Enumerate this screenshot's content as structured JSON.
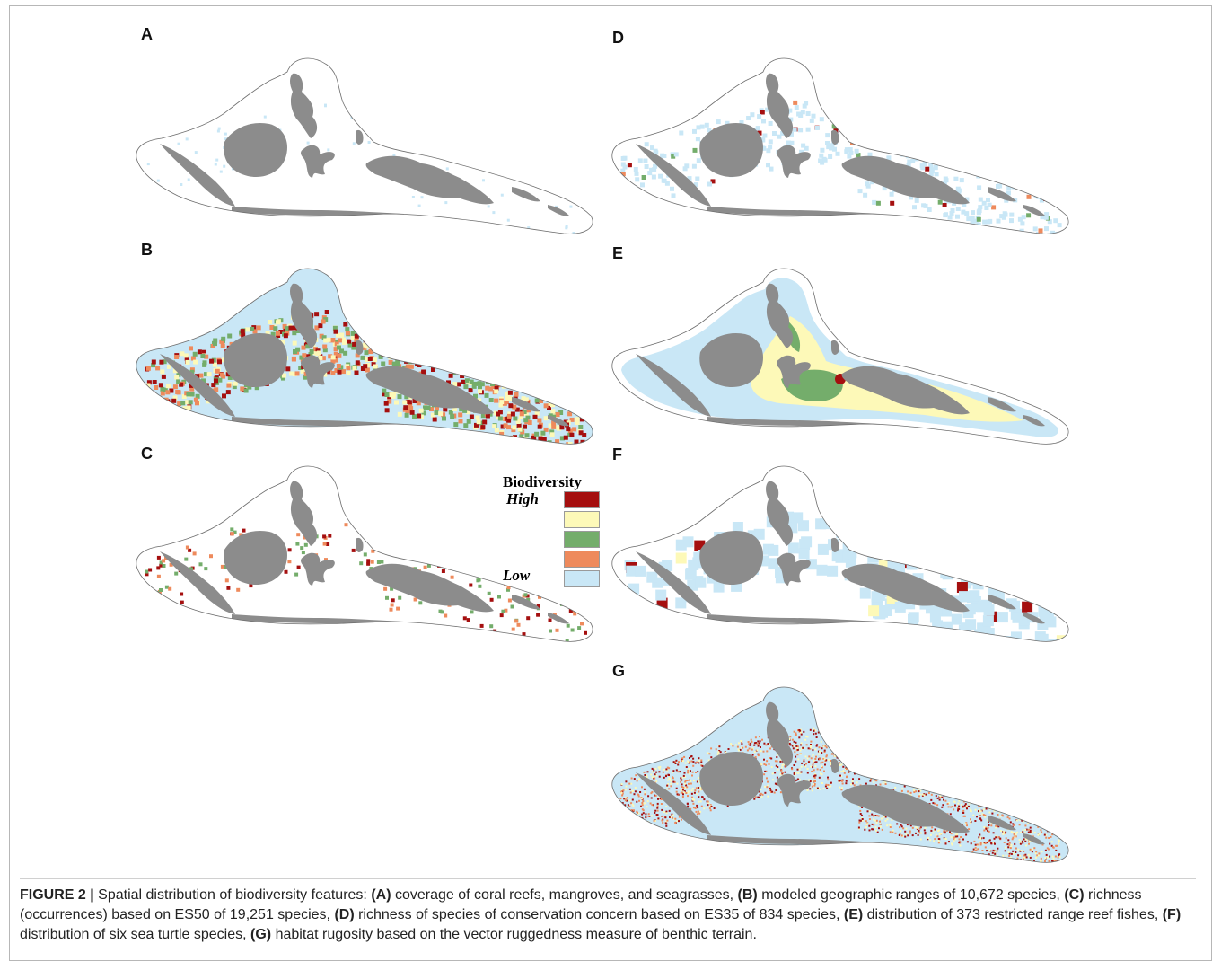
{
  "figure": {
    "panels": [
      {
        "id": "A",
        "label": "A",
        "variant": "sparse-reef",
        "colors": [
          "#c9e7f6"
        ]
      },
      {
        "id": "B",
        "label": "B",
        "variant": "full-ranges",
        "colors": [
          "#c9e7f6",
          "#a50f0f",
          "#fdf9b8",
          "#74ad6b",
          "#ee8a5c"
        ]
      },
      {
        "id": "C",
        "label": "C",
        "variant": "richness-dots",
        "colors": [
          "#a50f0f",
          "#ee8a5c",
          "#74ad6b"
        ]
      },
      {
        "id": "D",
        "label": "D",
        "variant": "scattered-cells",
        "colors": [
          "#c9e7f6",
          "#a50f0f",
          "#ee8a5c",
          "#74ad6b"
        ]
      },
      {
        "id": "E",
        "label": "E",
        "variant": "reef-fish-zones",
        "colors": [
          "#c9e7f6",
          "#fdf9b8",
          "#74ad6b",
          "#a50f0f"
        ]
      },
      {
        "id": "F",
        "label": "F",
        "variant": "turtle-grid",
        "colors": [
          "#c9e7f6",
          "#a50f0f",
          "#fdf9b8"
        ]
      },
      {
        "id": "G",
        "label": "G",
        "variant": "rugosity",
        "colors": [
          "#c9e7f6",
          "#a50f0f",
          "#ee8a5c",
          "#fdf9b8"
        ]
      }
    ],
    "land_color": "#8c8c8c",
    "ocean_color": "#c9e7f6",
    "legend": {
      "title": "Biodiversity",
      "high_label": "High",
      "low_label": "Low",
      "swatches": [
        "#a50f0f",
        "#fdf9b8",
        "#74ad6b",
        "#ee8a5c",
        "#c9e7f6"
      ]
    },
    "caption": {
      "prefix": "FIGURE 2 |",
      "lead": " Spatial distribution of biodiversity features: ",
      "items": [
        {
          "key": "(A)",
          "text": " coverage of coral reefs, mangroves, and seagrasses, "
        },
        {
          "key": "(B)",
          "text": " modeled geographic ranges of 10,672 species, "
        },
        {
          "key": "(C)",
          "text": " richness (occurrences) based on ES50 of 19,251 species, "
        },
        {
          "key": "(D)",
          "text": " richness of species of conservation concern based on ES35 of 834 species, "
        },
        {
          "key": "(E)",
          "text": " distribution of 373 restricted range reef fishes, "
        },
        {
          "key": "(F)",
          "text": " distribution of six sea turtle species, "
        },
        {
          "key": "(G)",
          "text": " habitat rugosity based on the vector ruggedness measure of benthic terrain."
        }
      ]
    }
  }
}
